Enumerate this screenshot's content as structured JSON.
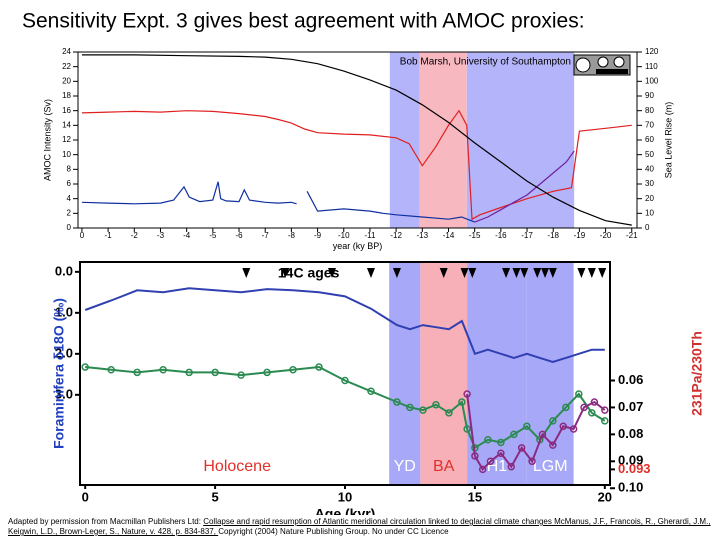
{
  "title": "Sensitivity Expt. 3 gives best agreement with AMOC proxies:",
  "footer": [
    {
      "text": "Adapted by permission from Macmillan Publishers Ltd: ",
      "underline": false
    },
    {
      "text": "Collapse and rapid resumption of Atlantic  meridional circulation linked to deglacial climate changes McManus, J.F., Francois, R., Gherardi, J.M., Keigwin, L.D., Brown-Leger, S., Nature, v. 428, p. 834-837, ",
      "underline": true
    },
    {
      "text": " Copyright (2004) Nature Publishing Group. No under CC Licence",
      "underline": false
    }
  ],
  "chart_data": [
    {
      "type": "line",
      "annotation": "Bob Marsh, University of Southampton",
      "xlabel": "year (ky BP)",
      "ylabel": "AMOC Intensity (Sv)",
      "y2label": "Sea Level Rise (m)",
      "xlim": [
        0.15,
        -21.2
      ],
      "xticks": [
        0,
        -1,
        -2,
        -3,
        -4,
        -5,
        -6,
        -7,
        -8,
        -9,
        -10,
        -11,
        -12,
        -13,
        -14,
        -15,
        -16,
        -17,
        -18,
        -19,
        -20,
        -21
      ],
      "ylim": [
        0,
        24
      ],
      "yticks": [
        0,
        2,
        4,
        6,
        8,
        10,
        12,
        14,
        16,
        18,
        20,
        22,
        24
      ],
      "y2lim": [
        0,
        120
      ],
      "y2ticks": [
        0,
        10,
        20,
        30,
        40,
        50,
        60,
        70,
        80,
        90,
        100,
        110,
        120
      ],
      "shading": [
        {
          "range": [
            -11.76,
            -12.9
          ],
          "color": "#b4b4fa"
        },
        {
          "range": [
            -12.9,
            -14.7
          ],
          "color": "#f8b8c0"
        },
        {
          "range": [
            -14.7,
            -18.8
          ],
          "color": "#b4b4fa"
        }
      ],
      "series": [
        {
          "color": "#e02020",
          "x": [
            0,
            -1,
            -2,
            -3,
            -4,
            -5,
            -6,
            -7,
            -7.5,
            -8,
            -8.5,
            -9,
            -10,
            -11,
            -12,
            -12.5,
            -13,
            -13.5,
            -14,
            -14.4,
            -14.7,
            -14.9,
            -15.2,
            -16,
            -17,
            -18,
            -18.7,
            -19,
            -20,
            -21
          ],
          "values": [
            15.7,
            15.8,
            15.9,
            15.8,
            16,
            15.9,
            15.6,
            15.2,
            14.8,
            14.3,
            13.5,
            13,
            12.8,
            12.7,
            12.3,
            11.5,
            8.5,
            11,
            14,
            16,
            14,
            1.2,
            1.8,
            2.8,
            4,
            5,
            5.5,
            13.2,
            13.6,
            14
          ]
        },
        {
          "color": "#1030a0",
          "x": [
            0,
            -1,
            -2,
            -3,
            -3.5,
            -3.9,
            -4.1,
            -4.5,
            -5,
            -5.2,
            -5.3,
            -5.5,
            -6,
            -6.2,
            -6.4,
            -7,
            -7.5,
            -8,
            -8.2,
            -8.4,
            -8.6,
            -9,
            -10,
            -11,
            -11.5,
            -12,
            -13,
            -14,
            -14.5,
            -15
          ],
          "values": [
            3.5,
            3.4,
            3.3,
            3.4,
            3.8,
            5.6,
            4.2,
            3.6,
            3.8,
            6.3,
            4.0,
            3.7,
            3.6,
            5.2,
            3.8,
            3.5,
            3.4,
            3.5,
            3.3,
            null,
            5.0,
            2.3,
            2.6,
            2.3,
            2.0,
            1.8,
            1.5,
            1.2,
            1.5,
            0.8
          ]
        },
        {
          "color": "#7020a0",
          "x": [
            -15,
            -15.5,
            -16,
            -16.5,
            -17,
            -17.5,
            -18,
            -18.5,
            -18.8
          ],
          "values": [
            0.8,
            1.5,
            2.5,
            3.5,
            4.5,
            6,
            7.5,
            9,
            10.5
          ]
        },
        {
          "color": "#000000",
          "axis": "y2",
          "x": [
            0,
            -2,
            -4,
            -6,
            -7,
            -8,
            -9,
            -10,
            -11,
            -12,
            -13,
            -14,
            -15,
            -16,
            -17,
            -18,
            -19,
            -20,
            -21
          ],
          "values": [
            118,
            118,
            117.5,
            117,
            116.5,
            115,
            112,
            107,
            101,
            94,
            84,
            72,
            58,
            45,
            32,
            21,
            12,
            5,
            2
          ]
        }
      ]
    },
    {
      "type": "line",
      "xlabel": "Age (kyr)",
      "ylabel": "Foraminifera δ18O (‰)",
      "ylabel_color": "#2040c0",
      "y2label": "231Pa/230Th",
      "y2label_color": "#d03030",
      "y_inverted": true,
      "xlim": [
        -0.2,
        20.2
      ],
      "xticks": [
        0,
        5,
        10,
        15,
        20
      ],
      "ylim": [
        -0.24,
        5.2
      ],
      "yticks": [
        {
          "value": 0,
          "label": "0.0"
        },
        {
          "value": 1,
          "label": "1.0"
        },
        {
          "value": 2,
          "label": "2.0"
        },
        {
          "value": 3,
          "label": "3.0"
        }
      ],
      "y2lim": [
        0.016,
        0.0988
      ],
      "y2ticks": [
        0.06,
        0.07,
        0.08,
        0.09,
        0.093,
        {
          "value": 0.1,
          "label": "0.10"
        }
      ],
      "y2tick_colors": [
        "#000000",
        "#000000",
        "#000000",
        "#000000",
        "#e0302a",
        "#000000"
      ],
      "age_marker_label": "14C ages",
      "age_markers": [
        6.2,
        7.7,
        9.5,
        11.0,
        12.0,
        13.8,
        14.6,
        14.9,
        16.2,
        16.6,
        16.9,
        17.4,
        17.7,
        18.0,
        19.1,
        19.5,
        19.9
      ],
      "periods": [
        {
          "label": "Holocene",
          "range": [
            0,
            11.7
          ],
          "label_color": "#e0302a"
        },
        {
          "label": "YD",
          "range": [
            11.7,
            12.9
          ],
          "color": "#a8a8f8",
          "label_color": "#ffffff"
        },
        {
          "label": "BA",
          "range": [
            12.9,
            14.7
          ],
          "color": "#f8b0b8",
          "label_color": "#e0302a"
        },
        {
          "label": "H1",
          "range": [
            14.7,
            17.0
          ],
          "color": "#a8a8f8",
          "label_color": "#ffffff"
        },
        {
          "label": "LGM",
          "range": [
            17.0,
            18.8
          ],
          "color": "#a8a8f8",
          "label_color": "#ffffff"
        }
      ],
      "series": [
        {
          "color": "#3040b0",
          "x": [
            0,
            1,
            2,
            3,
            4,
            5,
            6,
            7,
            8,
            9,
            10,
            11,
            11.5,
            12,
            12.5,
            13,
            13.5,
            14,
            14.5,
            15,
            15.5,
            16,
            16.5,
            17,
            17.5,
            18,
            18.5,
            19,
            19.5,
            20
          ],
          "values": [
            0.93,
            0.7,
            0.45,
            0.5,
            0.4,
            0.45,
            0.5,
            0.42,
            0.45,
            0.5,
            0.6,
            0.9,
            1.1,
            1.3,
            1.4,
            1.3,
            1.35,
            1.4,
            1.2,
            2.0,
            1.9,
            2.0,
            2.1,
            2.0,
            2.1,
            2.2,
            2.1,
            2.0,
            1.9,
            1.9
          ]
        },
        {
          "color": "#2a8a50",
          "axis": "y2",
          "markers": "circle",
          "x": [
            0,
            1,
            2,
            3,
            4,
            5,
            6,
            7,
            8,
            9,
            10,
            11,
            12,
            12.5,
            13,
            13.5,
            14,
            14.5,
            14.7,
            15,
            15.5,
            16,
            16.5,
            17,
            17.5,
            18,
            18.5,
            19,
            19.5,
            20
          ],
          "values": [
            0.055,
            0.056,
            0.057,
            0.056,
            0.057,
            0.057,
            0.058,
            0.057,
            0.056,
            0.055,
            0.06,
            0.064,
            0.068,
            0.07,
            0.071,
            0.069,
            0.072,
            0.068,
            0.078,
            0.085,
            0.082,
            0.083,
            0.08,
            0.077,
            0.082,
            0.075,
            0.07,
            0.065,
            0.072,
            0.075
          ]
        },
        {
          "color": "#8a2a80",
          "axis": "y2",
          "markers": "circle",
          "x": [
            14.7,
            15,
            15.3,
            15.6,
            16,
            16.4,
            16.8,
            17.2,
            17.6,
            18,
            18.4,
            18.8,
            19.2,
            19.6,
            20
          ],
          "values": [
            0.065,
            0.088,
            0.093,
            0.09,
            0.087,
            0.092,
            0.085,
            0.09,
            0.08,
            0.084,
            0.077,
            0.078,
            0.07,
            0.068,
            0.071
          ]
        }
      ]
    }
  ]
}
